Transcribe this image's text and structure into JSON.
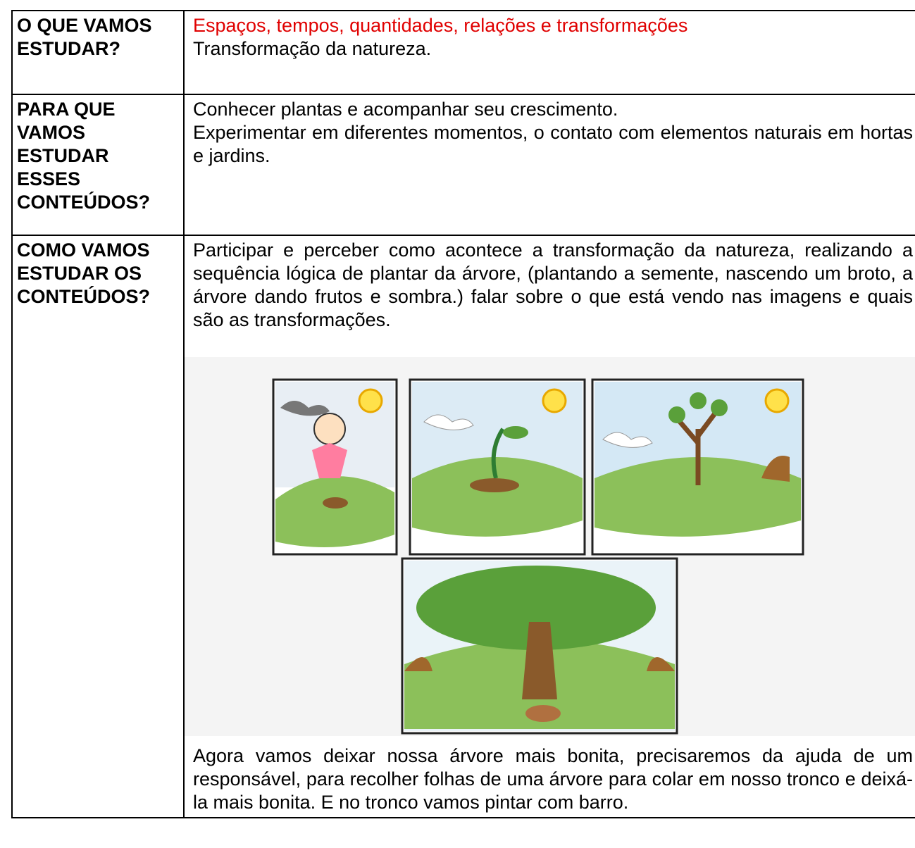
{
  "table": {
    "rows": [
      {
        "label": [
          "O QUE VAMOS",
          "ESTUDAR?"
        ],
        "content": [
          "Espaços, tempos, quantidades, relações e transformações",
          "Transformação da natureza."
        ]
      },
      {
        "label": [
          "PARA QUE",
          "VAMOS",
          "ESTUDAR",
          "ESSES",
          "CONTEÚDOS?"
        ],
        "content": [
          "Conhecer plantas e acompanhar seu crescimento.",
          "Experimentar em diferentes momentos, o contato com elementos naturais em hortas e jardins."
        ]
      },
      {
        "label": [
          "COMO VAMOS",
          "ESTUDAR OS",
          "CONTEÚDOS?"
        ],
        "content": [
          "Participar e perceber como acontece a transformação da natureza, realizando a sequência lógica de plantar da árvore, (plantando a semente, nascendo um broto, a árvore dando frutos e sombra.) falar sobre o que está vendo nas imagens e quais são as transformações.",
          "Agora vamos deixar nossa árvore mais bonita, precisaremos da ajuda de um responsável, para recolher folhas de uma árvore para colar em nosso tronco e deixá-la mais bonita. E no tronco vamos pintar com barro."
        ]
      }
    ]
  }
}
